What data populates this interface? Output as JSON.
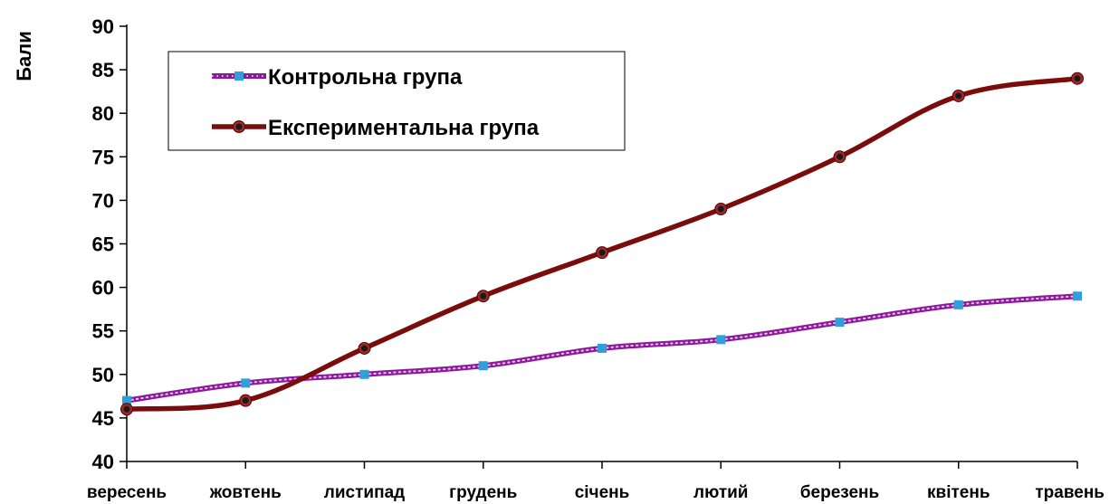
{
  "chart_data": {
    "type": "line",
    "ylabel": "Бали",
    "xlabel": "",
    "ylim": [
      40,
      90
    ],
    "yticks": [
      40,
      45,
      50,
      55,
      60,
      65,
      70,
      75,
      80,
      85,
      90
    ],
    "categories": [
      "вересень",
      "жовтень",
      "листипад",
      "грудень",
      "січень",
      "лютий",
      "березень",
      "квітень",
      "травень"
    ],
    "series": [
      {
        "name": "Контрольна група",
        "values": [
          47,
          49,
          50,
          51,
          53,
          54,
          56,
          58,
          59
        ],
        "color": "#8B1A9A",
        "marker_color": "#2FA0DC",
        "style": "dotted"
      },
      {
        "name": "Експериментальна група",
        "values": [
          46,
          47,
          53,
          59,
          64,
          69,
          75,
          82,
          84
        ],
        "color": "#7B0C0C",
        "marker_color": "#1a1a1a",
        "style": "solid"
      }
    ],
    "legend": "top-left",
    "grid": false
  }
}
